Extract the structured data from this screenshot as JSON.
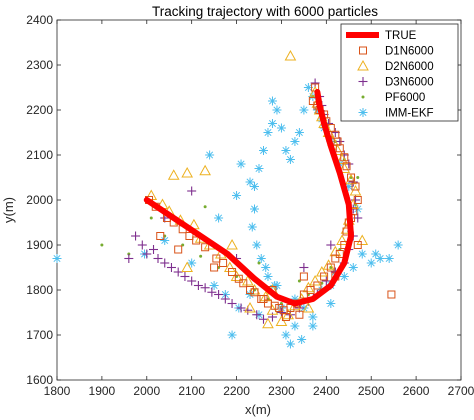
{
  "chart_data": {
    "type": "scatter",
    "title": "Tracking trajectory with 6000 particles",
    "xlabel": "x(m)",
    "ylabel": "y(m)",
    "xlim": [
      1800,
      2700
    ],
    "ylim": [
      1600,
      2400
    ],
    "xticks": [
      "1800",
      "1900",
      "2000",
      "2100",
      "2200",
      "2300",
      "2400",
      "2500",
      "2600",
      "2700"
    ],
    "yticks": [
      "1600",
      "1700",
      "1800",
      "1900",
      "2000",
      "2100",
      "2200",
      "2300",
      "2400"
    ],
    "grid": false,
    "legend_position": "top-right",
    "series": [
      {
        "name": "TRUE",
        "marker": "line",
        "color": "#FF0000",
        "x": [
          2000,
          2060,
          2120,
          2180,
          2240,
          2290,
          2330,
          2370,
          2410,
          2440,
          2455,
          2450,
          2430,
          2410,
          2395,
          2385,
          2380
        ],
        "y": [
          2000,
          1960,
          1920,
          1880,
          1825,
          1785,
          1770,
          1780,
          1810,
          1860,
          1920,
          1990,
          2060,
          2120,
          2170,
          2210,
          2240
        ]
      },
      {
        "name": "D1N6000",
        "marker": "square",
        "color": "#D95319",
        "x": [
          2005,
          2020,
          2045,
          2060,
          2080,
          2095,
          2110,
          2130,
          2155,
          2170,
          2190,
          2205,
          2215,
          2230,
          2240,
          2255,
          2270,
          2285,
          2295,
          2305,
          2320,
          2335,
          2350,
          2365,
          2380,
          2395,
          2410,
          2420,
          2430,
          2440,
          2445,
          2450,
          2455,
          2460,
          2470,
          2465,
          2455,
          2445,
          2440,
          2430,
          2425,
          2420,
          2410,
          2400,
          2395,
          2385,
          2380,
          2370,
          2375,
          2545,
          2030,
          2070,
          2150,
          2260,
          2310,
          2340,
          2420,
          2470,
          2350,
          2280
        ],
        "y": [
          2000,
          1985,
          1960,
          1950,
          1935,
          1920,
          1910,
          1895,
          1870,
          1860,
          1840,
          1825,
          1815,
          1800,
          1795,
          1780,
          1770,
          1765,
          1760,
          1755,
          1760,
          1770,
          1790,
          1800,
          1810,
          1830,
          1850,
          1870,
          1880,
          1900,
          1930,
          1950,
          1960,
          1975,
          2000,
          2030,
          2050,
          2075,
          2095,
          2115,
          2130,
          2145,
          2160,
          2175,
          2190,
          2200,
          2210,
          2220,
          2250,
          1790,
          1920,
          1890,
          1850,
          1780,
          1740,
          1745,
          1830,
          1900,
          1830,
          1800
        ]
      },
      {
        "name": "D2N6000",
        "marker": "triangle",
        "color": "#EDB120",
        "x": [
          2010,
          2035,
          2050,
          2075,
          2090,
          2105,
          2120,
          2140,
          2165,
          2185,
          2200,
          2225,
          2240,
          2265,
          2280,
          2300,
          2315,
          2330,
          2345,
          2360,
          2375,
          2390,
          2405,
          2420,
          2435,
          2445,
          2450,
          2460,
          2465,
          2455,
          2440,
          2435,
          2425,
          2415,
          2405,
          2395,
          2390,
          2385,
          2380,
          2375,
          2060,
          2130,
          2090,
          2320,
          2270,
          2190,
          2230,
          2280,
          2480,
          2360
        ],
        "y": [
          2010,
          1990,
          1975,
          1955,
          2060,
          1945,
          1915,
          1900,
          1880,
          1850,
          1830,
          1820,
          1800,
          1785,
          1755,
          1730,
          1745,
          1765,
          1780,
          1805,
          1820,
          1840,
          1855,
          1885,
          1910,
          1935,
          1955,
          1990,
          2020,
          2045,
          2070,
          2090,
          2110,
          2130,
          2150,
          2170,
          2185,
          2200,
          2215,
          2240,
          2055,
          2065,
          1850,
          2320,
          1725,
          1900,
          1760,
          1800,
          1910,
          1760
        ]
      },
      {
        "name": "D3N6000",
        "marker": "plus",
        "color": "#7E2F8E",
        "x": [
          1975,
          1990,
          2000,
          2015,
          2025,
          2040,
          2055,
          2070,
          2085,
          2100,
          2115,
          2130,
          2145,
          2160,
          2175,
          2190,
          2210,
          2225,
          2245,
          2260,
          2280,
          2300,
          2320,
          2340,
          2360,
          2380,
          2400,
          2420,
          2440,
          2450,
          2460,
          2470,
          2465,
          2460,
          2450,
          2440,
          2430,
          2420,
          2405,
          2395,
          2390,
          2385,
          2375,
          1960,
          2040,
          2100,
          2200,
          2350,
          2410,
          2460
        ],
        "y": [
          1920,
          1900,
          1880,
          1890,
          1870,
          1860,
          1850,
          1840,
          1830,
          1820,
          1810,
          1805,
          1795,
          1790,
          1780,
          1770,
          1760,
          1755,
          1745,
          1735,
          1740,
          1750,
          1745,
          1760,
          1775,
          1790,
          1820,
          1840,
          1860,
          1890,
          1920,
          1960,
          2000,
          2040,
          2080,
          2100,
          2130,
          2150,
          2170,
          2190,
          2210,
          2230,
          2260,
          1870,
          1960,
          2020,
          1870,
          1850,
          1900,
          1980
        ]
      },
      {
        "name": "PF6000",
        "marker": "dot",
        "color": "#77AC30",
        "x": [
          1900,
          1960,
          2010,
          2040,
          2080,
          2120,
          2160,
          2200,
          2240,
          2270,
          2300,
          2330,
          2360,
          2390,
          2410,
          2430,
          2450,
          2465,
          2455,
          2440,
          2420,
          2400,
          2390,
          2380,
          2370,
          2130,
          2250,
          2340,
          2470
        ],
        "y": [
          1900,
          1880,
          1960,
          1920,
          1900,
          1875,
          1850,
          1830,
          1800,
          1780,
          1770,
          1775,
          1790,
          1815,
          1850,
          1890,
          1930,
          1990,
          2050,
          2090,
          2130,
          2170,
          2200,
          2220,
          2230,
          1985,
          1860,
          1820,
          2050
        ]
      },
      {
        "name": "IMM-EKF",
        "marker": "asterisk",
        "color": "#4DBEEE",
        "x": [
          1800,
          1995,
          2040,
          2100,
          2140,
          2160,
          2200,
          2210,
          2230,
          2240,
          2255,
          2270,
          2290,
          2300,
          2310,
          2320,
          2330,
          2350,
          2370,
          2390,
          2410,
          2420,
          2440,
          2460,
          2480,
          2500,
          2510,
          2520,
          2540,
          2560,
          2470,
          2450,
          2430,
          2410,
          2395,
          2390,
          2380,
          2370,
          2360,
          2350,
          2340,
          2330,
          2320,
          2310,
          2300,
          2290,
          2280,
          2270,
          2260,
          2250,
          2240,
          2235,
          2245,
          2265,
          2285,
          2205,
          2190,
          2175,
          2150,
          2230,
          2250,
          2330,
          2370,
          2410,
          2345,
          2280
        ],
        "y": [
          1870,
          1880,
          1910,
          1860,
          2100,
          1960,
          2010,
          2080,
          2040,
          1980,
          1870,
          1830,
          1810,
          1760,
          1700,
          1680,
          1720,
          1760,
          1740,
          1800,
          1810,
          1840,
          1830,
          1850,
          1880,
          1860,
          1880,
          1870,
          1870,
          1900,
          1980,
          2030,
          2080,
          2130,
          2160,
          2180,
          2200,
          2230,
          2250,
          2200,
          2150,
          2130,
          2090,
          2110,
          2160,
          2200,
          2220,
          2150,
          2110,
          2070,
          2030,
          1940,
          1900,
          1850,
          1810,
          1760,
          1700,
          1790,
          1810,
          1790,
          1745,
          1780,
          1720,
          1770,
          1690,
          2170
        ]
      }
    ]
  }
}
